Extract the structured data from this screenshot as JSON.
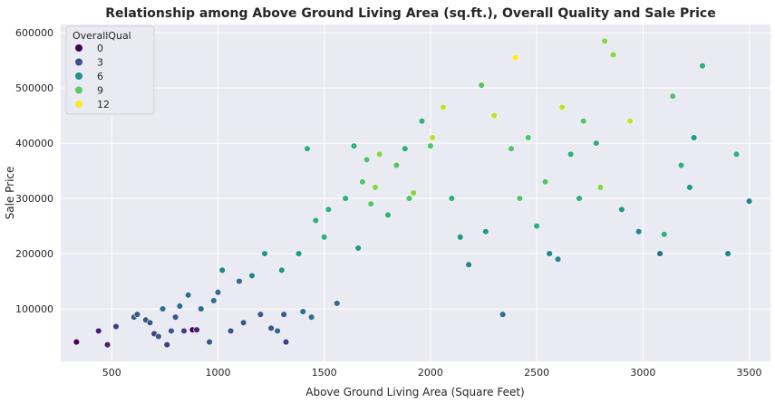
{
  "chart_data": {
    "type": "scatter",
    "title": "Relationship among Above Ground Living Area (sq.ft.), Overall Quality and Sale Price",
    "xlabel": "Above Ground Living Area (Square Feet)",
    "ylabel": "Sale Price",
    "xlim": [
      260,
      3600
    ],
    "ylim": [
      5000,
      615000
    ],
    "xticks": [
      500,
      1000,
      1500,
      2000,
      2500,
      3000,
      3500
    ],
    "yticks": [
      100000,
      200000,
      300000,
      400000,
      500000,
      600000
    ],
    "xtick_labels": [
      "500",
      "1000",
      "1500",
      "2000",
      "2500",
      "3000",
      "3500"
    ],
    "ytick_labels": [
      "100000",
      "200000",
      "300000",
      "400000",
      "500000",
      "600000"
    ],
    "grid": true,
    "background": "#eaeaf2",
    "colormap": "viridis",
    "hue_range": [
      1,
      12
    ],
    "legend": {
      "title": "OverallQual",
      "placement": "top-left",
      "entries": [
        {
          "label": "0",
          "value": 0,
          "color": "#440154"
        },
        {
          "label": "3",
          "value": 3,
          "color": "#3b528b"
        },
        {
          "label": "6",
          "value": 6,
          "color": "#21918c"
        },
        {
          "label": "9",
          "value": 9,
          "color": "#5ec962"
        },
        {
          "label": "12",
          "value": 12,
          "color": "#fde725"
        }
      ]
    },
    "points": [
      [
        334,
        40000,
        1
      ],
      [
        438,
        60000,
        2
      ],
      [
        480,
        35000,
        2
      ],
      [
        520,
        68000,
        3
      ],
      [
        605,
        85000,
        4
      ],
      [
        620,
        90000,
        4
      ],
      [
        660,
        80000,
        4
      ],
      [
        680,
        75000,
        4
      ],
      [
        700,
        55000,
        3
      ],
      [
        720,
        50000,
        4
      ],
      [
        740,
        100000,
        5
      ],
      [
        760,
        35000,
        3
      ],
      [
        780,
        60000,
        4
      ],
      [
        800,
        85000,
        4
      ],
      [
        820,
        105000,
        5
      ],
      [
        840,
        60000,
        3
      ],
      [
        860,
        125000,
        5
      ],
      [
        880,
        62000,
        1
      ],
      [
        900,
        62000,
        2
      ],
      [
        920,
        100000,
        5
      ],
      [
        960,
        40000,
        4
      ],
      [
        980,
        115000,
        5
      ],
      [
        1000,
        130000,
        5
      ],
      [
        1020,
        170000,
        6
      ],
      [
        1060,
        60000,
        4
      ],
      [
        1100,
        150000,
        5
      ],
      [
        1120,
        75000,
        4
      ],
      [
        1160,
        160000,
        6
      ],
      [
        1200,
        90000,
        4
      ],
      [
        1220,
        200000,
        7
      ],
      [
        1250,
        65000,
        4
      ],
      [
        1280,
        60000,
        5
      ],
      [
        1300,
        170000,
        7
      ],
      [
        1310,
        90000,
        4
      ],
      [
        1320,
        40000,
        3
      ],
      [
        1380,
        200000,
        7
      ],
      [
        1400,
        95000,
        5
      ],
      [
        1420,
        390000,
        8
      ],
      [
        1440,
        85000,
        5
      ],
      [
        1460,
        260000,
        8
      ],
      [
        1500,
        230000,
        8
      ],
      [
        1520,
        280000,
        8
      ],
      [
        1560,
        110000,
        5
      ],
      [
        1600,
        300000,
        8
      ],
      [
        1640,
        395000,
        8
      ],
      [
        1660,
        210000,
        7
      ],
      [
        1680,
        330000,
        9
      ],
      [
        1700,
        370000,
        9
      ],
      [
        1720,
        290000,
        9
      ],
      [
        1740,
        320000,
        10
      ],
      [
        1760,
        380000,
        10
      ],
      [
        1800,
        270000,
        8
      ],
      [
        1840,
        360000,
        9
      ],
      [
        1880,
        390000,
        8
      ],
      [
        1900,
        300000,
        9
      ],
      [
        1920,
        310000,
        10
      ],
      [
        1960,
        440000,
        8
      ],
      [
        2000,
        395000,
        9
      ],
      [
        2010,
        410000,
        11
      ],
      [
        2060,
        465000,
        11
      ],
      [
        2100,
        300000,
        8
      ],
      [
        2140,
        230000,
        7
      ],
      [
        2180,
        180000,
        6
      ],
      [
        2240,
        505000,
        9
      ],
      [
        2260,
        240000,
        7
      ],
      [
        2300,
        450000,
        11
      ],
      [
        2340,
        90000,
        5
      ],
      [
        2380,
        390000,
        9
      ],
      [
        2400,
        555000,
        12
      ],
      [
        2420,
        300000,
        9
      ],
      [
        2460,
        410000,
        9
      ],
      [
        2500,
        250000,
        8
      ],
      [
        2540,
        330000,
        9
      ],
      [
        2560,
        200000,
        6
      ],
      [
        2600,
        190000,
        6
      ],
      [
        2620,
        465000,
        11
      ],
      [
        2660,
        380000,
        8
      ],
      [
        2700,
        300000,
        8
      ],
      [
        2720,
        440000,
        9
      ],
      [
        2780,
        400000,
        8
      ],
      [
        2800,
        320000,
        10
      ],
      [
        2820,
        585000,
        10
      ],
      [
        2860,
        560000,
        10
      ],
      [
        2900,
        280000,
        7
      ],
      [
        2940,
        440000,
        11
      ],
      [
        2980,
        240000,
        6
      ],
      [
        3080,
        200000,
        5
      ],
      [
        3100,
        235000,
        8
      ],
      [
        3140,
        485000,
        9
      ],
      [
        3180,
        360000,
        8
      ],
      [
        3220,
        320000,
        7
      ],
      [
        3240,
        410000,
        7
      ],
      [
        3280,
        540000,
        8
      ],
      [
        3400,
        200000,
        6
      ],
      [
        3440,
        380000,
        8
      ],
      [
        3500,
        295000,
        6
      ]
    ]
  }
}
